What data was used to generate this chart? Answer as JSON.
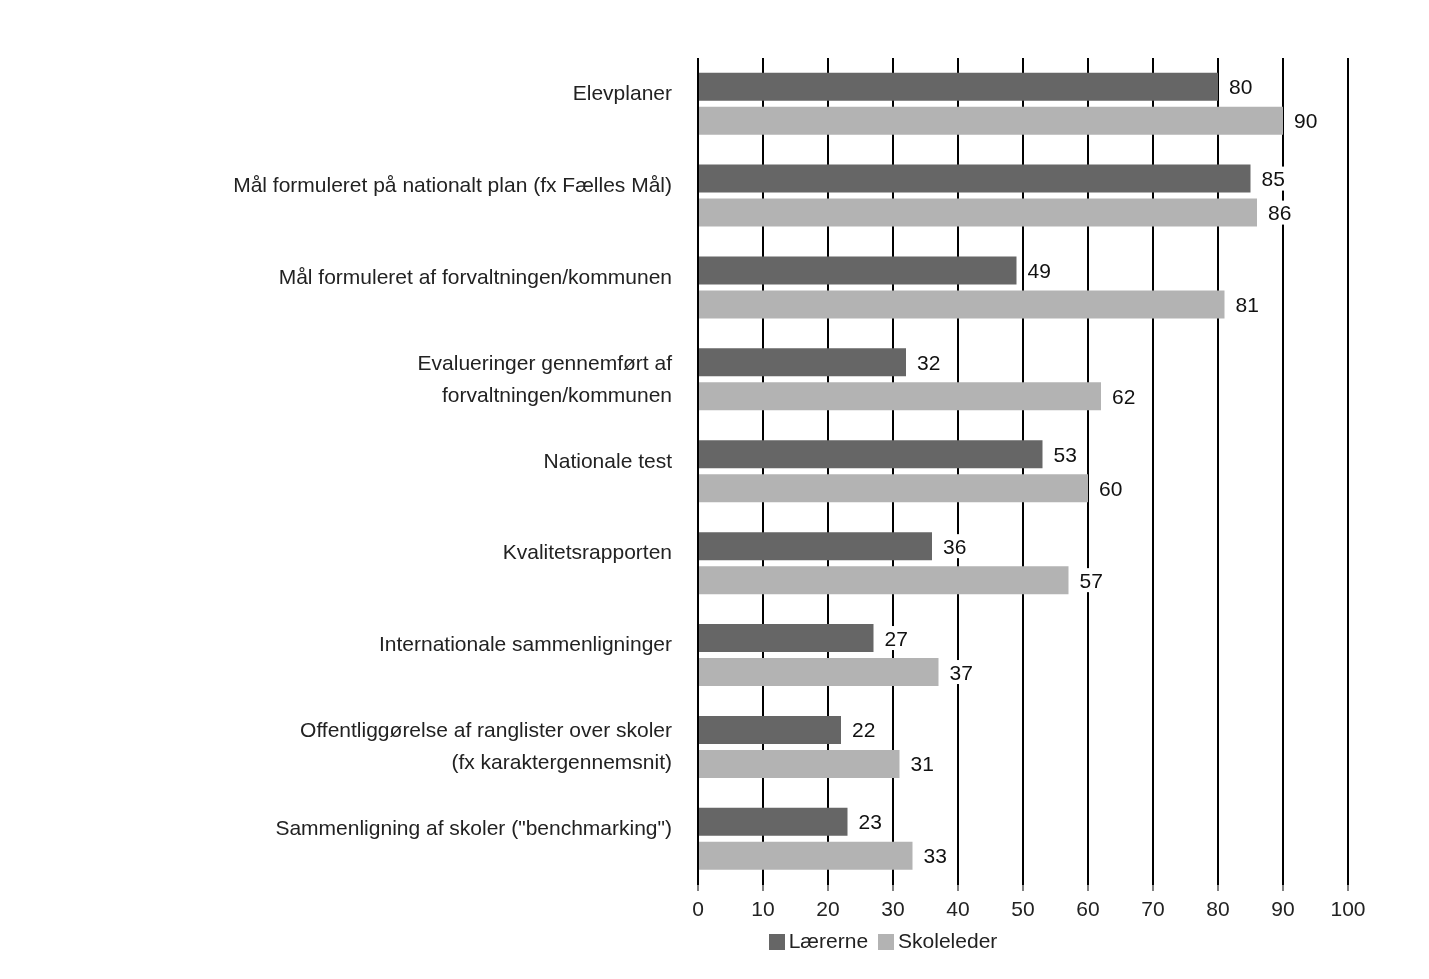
{
  "chart_data": {
    "type": "bar",
    "orientation": "horizontal",
    "categories": [
      "Elevplaner",
      "Mål formuleret på nationalt plan (fx Fælles Mål)",
      "Mål formuleret af forvaltningen/kommunen",
      "Evalueringer gennemført af forvaltningen/kommunen",
      "Nationale test",
      "Kvalitetsrapporten",
      "Internationale sammenligninger",
      "Offentliggørelse af ranglister over skoler (fx karaktergennemsnit)",
      "Sammenligning af skoler (\"benchmarking\")"
    ],
    "series": [
      {
        "name": "Lærerne",
        "color": "#666666",
        "values": [
          80,
          85,
          49,
          32,
          53,
          36,
          27,
          22,
          23
        ]
      },
      {
        "name": "Skoleleder",
        "color": "#b3b3b3",
        "values": [
          90,
          86,
          81,
          62,
          60,
          57,
          37,
          31,
          33
        ]
      }
    ],
    "xlim": [
      0,
      100
    ],
    "xticks": [
      0,
      10,
      20,
      30,
      40,
      50,
      60,
      70,
      80,
      90,
      100
    ],
    "grid": "x",
    "legend": "bottom",
    "data_labels": true
  }
}
